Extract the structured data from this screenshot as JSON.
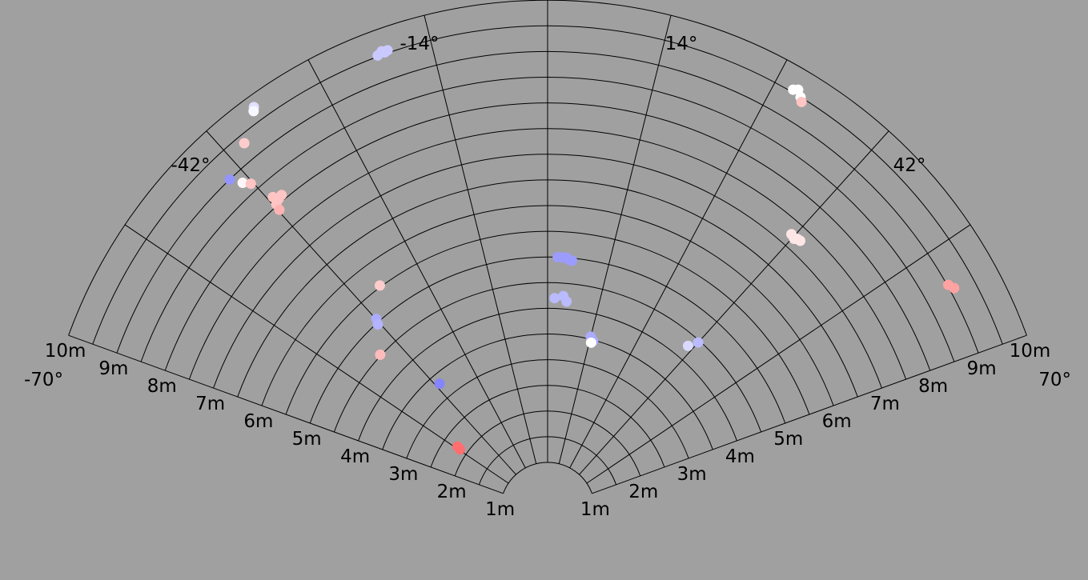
{
  "chart_data": {
    "type": "scatter",
    "coordinate_system": "polar-fan",
    "angle_range_deg": [
      -70,
      70
    ],
    "range_max_m": 10,
    "range_min_m": 1,
    "grid": true,
    "angle_tick_labels": [
      "-70°",
      "-42°",
      "-14°",
      "14°",
      "42°",
      "70°"
    ],
    "range_tick_labels": [
      "1m",
      "2m",
      "3m",
      "4m",
      "5m",
      "6m",
      "7m",
      "8m",
      "9m",
      "10m"
    ],
    "point_color_scale": {
      "low": "#6666ff",
      "mid": "#ffffff",
      "high": "#ff5555"
    },
    "points": [
      {
        "angle": -19.2,
        "range": 9.55,
        "v": -0.35
      },
      {
        "angle": -19.6,
        "range": 9.53,
        "v": -0.35
      },
      {
        "angle": -19.9,
        "range": 9.57,
        "v": -0.35
      },
      {
        "angle": -20.5,
        "range": 9.52,
        "v": -0.35
      },
      {
        "angle": -36.1,
        "range": 9.78,
        "v": -0.2
      },
      {
        "angle": -36.4,
        "range": 9.72,
        "v": -0.05
      },
      {
        "angle": -39.6,
        "range": 9.34,
        "v": 0.3
      },
      {
        "angle": -43.9,
        "range": 9.0,
        "v": -0.7
      },
      {
        "angle": -43.0,
        "range": 8.78,
        "v": 0.05
      },
      {
        "angle": -42.3,
        "range": 8.66,
        "v": 0.35
      },
      {
        "angle": -41.6,
        "range": 8.03,
        "v": 0.35
      },
      {
        "angle": -41.3,
        "range": 8.18,
        "v": 0.35
      },
      {
        "angle": -40.8,
        "range": 8.08,
        "v": 0.35
      },
      {
        "angle": -40.2,
        "range": 8.1,
        "v": 0.35
      },
      {
        "angle": -41.8,
        "range": 7.91,
        "v": 0.45
      },
      {
        "angle": -36.8,
        "range": 5.53,
        "v": 0.3
      },
      {
        "angle": -41.9,
        "range": 5.07,
        "v": -0.55
      },
      {
        "angle": -42.5,
        "range": 4.97,
        "v": -0.5
      },
      {
        "angle": -47.2,
        "range": 4.52,
        "v": 0.4
      },
      {
        "angle": -40.6,
        "range": 3.31,
        "v": -0.8
      },
      {
        "angle": -55.5,
        "range": 2.15,
        "v": 0.85
      },
      {
        "angle": -55.0,
        "range": 2.22,
        "v": 0.85
      },
      {
        "angle": 2.3,
        "range": 5.0,
        "v": -0.65
      },
      {
        "angle": 3.3,
        "range": 5.0,
        "v": -0.65
      },
      {
        "angle": 4.3,
        "range": 5.0,
        "v": -0.65
      },
      {
        "angle": 4.9,
        "range": 4.96,
        "v": -0.65
      },
      {
        "angle": 5.6,
        "range": 4.95,
        "v": -0.65
      },
      {
        "angle": 1.9,
        "range": 4.2,
        "v": -0.45
      },
      {
        "angle": 4.2,
        "range": 4.25,
        "v": -0.45
      },
      {
        "angle": 5.2,
        "range": 4.15,
        "v": -0.45
      },
      {
        "angle": 14.0,
        "range": 3.55,
        "v": -0.55
      },
      {
        "angle": 15.1,
        "range": 3.48,
        "v": -0.55
      },
      {
        "angle": 14.6,
        "range": 3.44,
        "v": 0.0
      },
      {
        "angle": 40.6,
        "range": 4.28,
        "v": -0.25
      },
      {
        "angle": 42.0,
        "range": 4.46,
        "v": -0.45
      },
      {
        "angle": 30.3,
        "range": 9.55,
        "v": 0.0
      },
      {
        "angle": 31.5,
        "range": 9.5,
        "v": 0.0
      },
      {
        "angle": 30.8,
        "range": 9.6,
        "v": 0.0
      },
      {
        "angle": 31.9,
        "range": 9.43,
        "v": 0.35
      },
      {
        "angle": 41.5,
        "range": 7.24,
        "v": 0.15
      },
      {
        "angle": 42.3,
        "range": 7.21,
        "v": 0.15
      },
      {
        "angle": 42.7,
        "range": 7.25,
        "v": 0.15
      },
      {
        "angle": 43.2,
        "range": 7.26,
        "v": 0.15
      },
      {
        "angle": 60.7,
        "range": 9.02,
        "v": 0.55
      },
      {
        "angle": 61.4,
        "range": 9.09,
        "v": 0.55
      }
    ]
  }
}
